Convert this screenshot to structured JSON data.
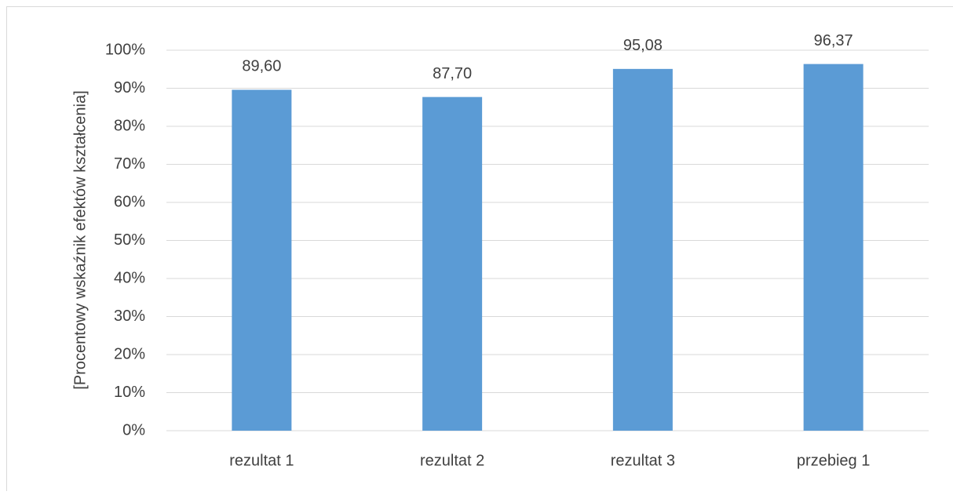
{
  "chart_data": {
    "type": "bar",
    "y_label": "[Procentowy wskaźnik efektów kształcenia]",
    "categories": [
      "rezultat 1",
      "rezultat 2",
      "rezultat 3",
      "przebieg 1"
    ],
    "values": [
      89.6,
      87.7,
      95.08,
      96.37
    ],
    "value_labels": [
      "89,60",
      "87,70",
      "95,08",
      "96,37"
    ],
    "color": "#5b9bd5",
    "ylim": [
      0,
      100
    ],
    "yticks": [
      {
        "value": 0,
        "label": "0%"
      },
      {
        "value": 10,
        "label": "10%"
      },
      {
        "value": 20,
        "label": "20%"
      },
      {
        "value": 30,
        "label": "30%"
      },
      {
        "value": 40,
        "label": "40%"
      },
      {
        "value": 50,
        "label": "50%"
      },
      {
        "value": 60,
        "label": "60%"
      },
      {
        "value": 70,
        "label": "70%"
      },
      {
        "value": 80,
        "label": "80%"
      },
      {
        "value": 90,
        "label": "90%"
      },
      {
        "value": 100,
        "label": "100%"
      }
    ],
    "grid": true
  }
}
